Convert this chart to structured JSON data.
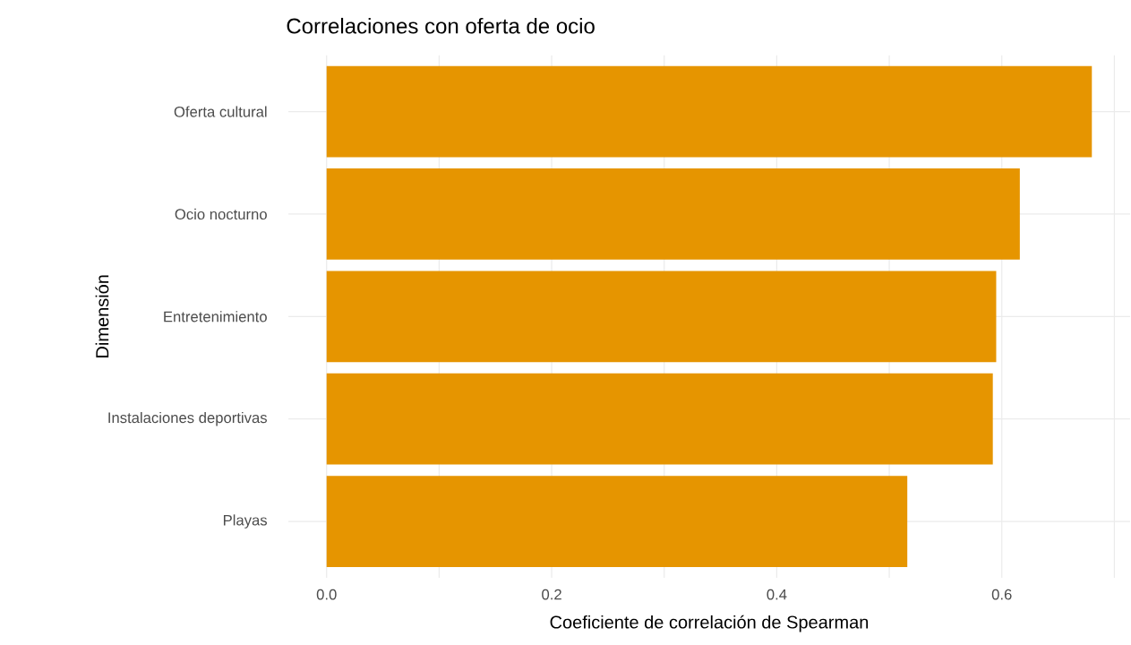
{
  "chart_data": {
    "type": "bar",
    "orientation": "horizontal",
    "title": "Correlaciones con oferta de ocio",
    "xlabel": "Coeficiente de correlación de Spearman",
    "ylabel": "Dimensión",
    "categories": [
      "Oferta cultural",
      "Ocio nocturno",
      "Entretenimiento",
      "Instalaciones deportivas",
      "Playas"
    ],
    "values": [
      0.68,
      0.616,
      0.595,
      0.592,
      0.516
    ],
    "color": "#e69500",
    "xlim": [
      -0.034,
      0.714
    ],
    "xticks": [
      {
        "value": 0,
        "label": "0.0"
      },
      {
        "value": 0.1,
        "label": null
      },
      0.2,
      {
        "value": 0.3,
        "label": null
      },
      0.4,
      {
        "value": 0.5,
        "label": null
      },
      0.6,
      {
        "value": 0.7,
        "label": null
      }
    ],
    "grid": true
  }
}
